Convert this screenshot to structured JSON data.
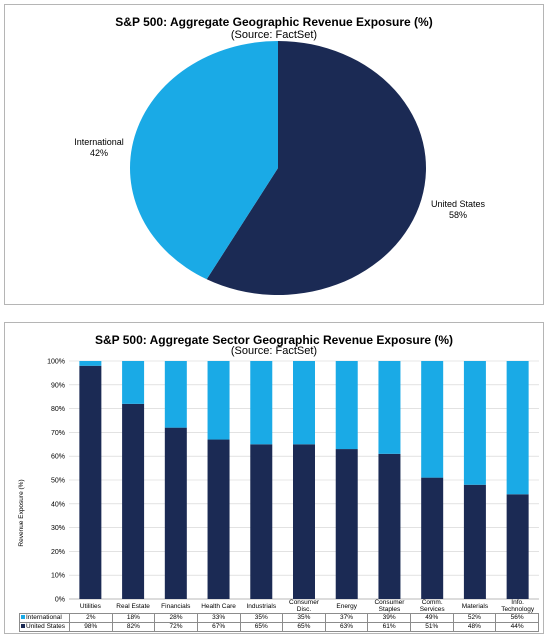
{
  "colors": {
    "international": "#1aaae6",
    "united_states": "#1b2a54"
  },
  "pie_chart": {
    "title": "S&P 500: Aggregate Geographic Revenue Exposure (%)",
    "subtitle": "(Source: FactSet)",
    "slices": [
      {
        "label": "International",
        "value_label": "42%"
      },
      {
        "label": "United States",
        "value_label": "58%"
      }
    ]
  },
  "bar_chart": {
    "title": "S&P 500: Aggregate Sector Geographic Revenue Exposure (%)",
    "subtitle": "(Source: FactSet)",
    "ylabel": "Revenue Exposure (%)",
    "yticks": [
      "0%",
      "10%",
      "20%",
      "30%",
      "40%",
      "50%",
      "60%",
      "70%",
      "80%",
      "90%",
      "100%"
    ],
    "table_rows": [
      {
        "label": "International",
        "cells": [
          "2%",
          "18%",
          "28%",
          "33%",
          "35%",
          "35%",
          "37%",
          "39%",
          "49%",
          "52%",
          "56%"
        ]
      },
      {
        "label": "United States",
        "cells": [
          "98%",
          "82%",
          "72%",
          "67%",
          "65%",
          "65%",
          "63%",
          "61%",
          "51%",
          "48%",
          "44%"
        ]
      }
    ]
  },
  "chart_data": [
    {
      "type": "pie",
      "title": "S&P 500: Aggregate Geographic Revenue Exposure (%)",
      "subtitle": "(Source: FactSet)",
      "labels": [
        "International",
        "United States"
      ],
      "values": [
        42,
        58
      ],
      "colors": [
        "#1aaae6",
        "#1b2a54"
      ]
    },
    {
      "type": "bar",
      "stacked": true,
      "title": "S&P 500: Aggregate Sector Geographic Revenue Exposure (%)",
      "subtitle": "(Source: FactSet)",
      "ylabel": "Revenue Exposure (%)",
      "ylim": [
        0,
        100
      ],
      "categories": [
        [
          "Utilities"
        ],
        [
          "Real Estate"
        ],
        [
          "Financials"
        ],
        [
          "Health Care"
        ],
        [
          "Industrials"
        ],
        [
          "Consumer",
          "Disc."
        ],
        [
          "Energy"
        ],
        [
          "Consumer",
          "Staples"
        ],
        [
          "Comm.",
          "Services"
        ],
        [
          "Materials"
        ],
        [
          "Info.",
          "Technology"
        ]
      ],
      "series": [
        {
          "name": "United States",
          "values": [
            98,
            82,
            72,
            67,
            65,
            65,
            63,
            61,
            51,
            48,
            44
          ]
        },
        {
          "name": "International",
          "values": [
            2,
            18,
            28,
            33,
            35,
            35,
            37,
            39,
            49,
            52,
            56
          ]
        }
      ],
      "legend": "table-below"
    }
  ]
}
